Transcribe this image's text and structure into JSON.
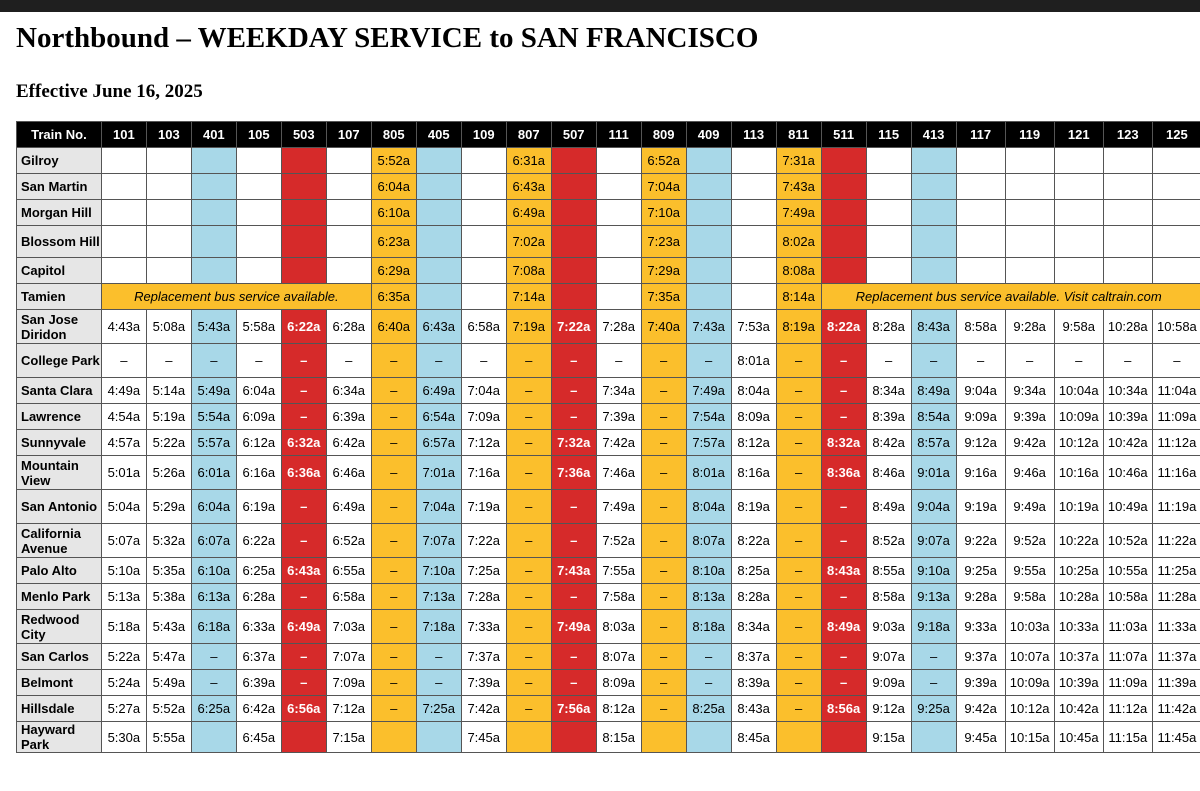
{
  "page": {
    "title": "Northbound – WEEKDAY SERVICE to SAN FRANCISCO",
    "effective": "Effective June 16, 2025"
  },
  "table": {
    "header_label": "Train No.",
    "trains": [
      "101",
      "103",
      "401",
      "105",
      "503",
      "107",
      "805",
      "405",
      "109",
      "807",
      "507",
      "111",
      "809",
      "409",
      "113",
      "811",
      "511",
      "115",
      "413",
      "117",
      "119",
      "121",
      "123",
      "125"
    ],
    "train_types": [
      "local",
      "local",
      "limited",
      "local",
      "bullet",
      "local",
      "express",
      "limited",
      "local",
      "express",
      "bullet",
      "local",
      "express",
      "limited",
      "local",
      "express",
      "bullet",
      "local",
      "limited",
      "local",
      "local",
      "local",
      "local",
      "local"
    ],
    "type_colors": {
      "local": "#ffffff",
      "limited": "#a8d8e8",
      "express": "#fbbf2c",
      "bullet": "#d62a2a"
    },
    "notices": {
      "tamien_left": "Replacement bus service available.",
      "tamien_right": "Replacement bus service available. Visit caltrain.com"
    },
    "stations": [
      {
        "name": "Gilroy",
        "times": [
          "",
          "",
          "",
          "",
          "",
          "",
          "5:52a",
          "",
          "",
          "6:31a",
          "",
          "",
          "6:52a",
          "",
          "",
          "7:31a",
          "",
          "",
          "",
          "",
          "",
          "",
          "",
          ""
        ]
      },
      {
        "name": "San Martin",
        "times": [
          "",
          "",
          "",
          "",
          "",
          "",
          "6:04a",
          "",
          "",
          "6:43a",
          "",
          "",
          "7:04a",
          "",
          "",
          "7:43a",
          "",
          "",
          "",
          "",
          "",
          "",
          "",
          ""
        ]
      },
      {
        "name": "Morgan Hill",
        "times": [
          "",
          "",
          "",
          "",
          "",
          "",
          "6:10a",
          "",
          "",
          "6:49a",
          "",
          "",
          "7:10a",
          "",
          "",
          "7:49a",
          "",
          "",
          "",
          "",
          "",
          "",
          "",
          ""
        ]
      },
      {
        "name": "Blossom Hill",
        "times": [
          "",
          "",
          "",
          "",
          "",
          "",
          "6:23a",
          "",
          "",
          "7:02a",
          "",
          "",
          "7:23a",
          "",
          "",
          "8:02a",
          "",
          "",
          "",
          "",
          "",
          "",
          "",
          ""
        ]
      },
      {
        "name": "Capitol",
        "times": [
          "",
          "",
          "",
          "",
          "",
          "",
          "6:29a",
          "",
          "",
          "7:08a",
          "",
          "",
          "7:29a",
          "",
          "",
          "8:08a",
          "",
          "",
          "",
          "",
          "",
          "",
          "",
          ""
        ]
      },
      {
        "name": "Tamien",
        "times": [
          "",
          "",
          "",
          "",
          "",
          "",
          "6:35a",
          "",
          "",
          "7:14a",
          "",
          "",
          "7:35a",
          "",
          "",
          "8:14a",
          "",
          "",
          "",
          "",
          "",
          "",
          "",
          ""
        ]
      },
      {
        "name": "San Jose Diridon",
        "times": [
          "4:43a",
          "5:08a",
          "5:43a",
          "5:58a",
          "6:22a",
          "6:28a",
          "6:40a",
          "6:43a",
          "6:58a",
          "7:19a",
          "7:22a",
          "7:28a",
          "7:40a",
          "7:43a",
          "7:53a",
          "8:19a",
          "8:22a",
          "8:28a",
          "8:43a",
          "8:58a",
          "9:28a",
          "9:58a",
          "10:28a",
          "10:58a"
        ]
      },
      {
        "name": "College Park",
        "times": [
          "–",
          "–",
          "–",
          "–",
          "–",
          "–",
          "–",
          "–",
          "–",
          "–",
          "–",
          "–",
          "–",
          "–",
          "8:01a",
          "–",
          "–",
          "–",
          "–",
          "–",
          "–",
          "–",
          "–",
          "–"
        ]
      },
      {
        "name": "Santa Clara",
        "times": [
          "4:49a",
          "5:14a",
          "5:49a",
          "6:04a",
          "–",
          "6:34a",
          "–",
          "6:49a",
          "7:04a",
          "–",
          "–",
          "7:34a",
          "–",
          "7:49a",
          "8:04a",
          "–",
          "–",
          "8:34a",
          "8:49a",
          "9:04a",
          "9:34a",
          "10:04a",
          "10:34a",
          "11:04a"
        ]
      },
      {
        "name": "Lawrence",
        "times": [
          "4:54a",
          "5:19a",
          "5:54a",
          "6:09a",
          "–",
          "6:39a",
          "–",
          "6:54a",
          "7:09a",
          "–",
          "–",
          "7:39a",
          "–",
          "7:54a",
          "8:09a",
          "–",
          "–",
          "8:39a",
          "8:54a",
          "9:09a",
          "9:39a",
          "10:09a",
          "10:39a",
          "11:09a"
        ]
      },
      {
        "name": "Sunnyvale",
        "times": [
          "4:57a",
          "5:22a",
          "5:57a",
          "6:12a",
          "6:32a",
          "6:42a",
          "–",
          "6:57a",
          "7:12a",
          "–",
          "7:32a",
          "7:42a",
          "–",
          "7:57a",
          "8:12a",
          "–",
          "8:32a",
          "8:42a",
          "8:57a",
          "9:12a",
          "9:42a",
          "10:12a",
          "10:42a",
          "11:12a"
        ]
      },
      {
        "name": "Mountain View",
        "times": [
          "5:01a",
          "5:26a",
          "6:01a",
          "6:16a",
          "6:36a",
          "6:46a",
          "–",
          "7:01a",
          "7:16a",
          "–",
          "7:36a",
          "7:46a",
          "–",
          "8:01a",
          "8:16a",
          "–",
          "8:36a",
          "8:46a",
          "9:01a",
          "9:16a",
          "9:46a",
          "10:16a",
          "10:46a",
          "11:16a"
        ]
      },
      {
        "name": "San Antonio",
        "times": [
          "5:04a",
          "5:29a",
          "6:04a",
          "6:19a",
          "–",
          "6:49a",
          "–",
          "7:04a",
          "7:19a",
          "–",
          "–",
          "7:49a",
          "–",
          "8:04a",
          "8:19a",
          "–",
          "–",
          "8:49a",
          "9:04a",
          "9:19a",
          "9:49a",
          "10:19a",
          "10:49a",
          "11:19a"
        ]
      },
      {
        "name": "California Avenue",
        "times": [
          "5:07a",
          "5:32a",
          "6:07a",
          "6:22a",
          "–",
          "6:52a",
          "–",
          "7:07a",
          "7:22a",
          "–",
          "–",
          "7:52a",
          "–",
          "8:07a",
          "8:22a",
          "–",
          "–",
          "8:52a",
          "9:07a",
          "9:22a",
          "9:52a",
          "10:22a",
          "10:52a",
          "11:22a"
        ]
      },
      {
        "name": "Palo Alto",
        "times": [
          "5:10a",
          "5:35a",
          "6:10a",
          "6:25a",
          "6:43a",
          "6:55a",
          "–",
          "7:10a",
          "7:25a",
          "–",
          "7:43a",
          "7:55a",
          "–",
          "8:10a",
          "8:25a",
          "–",
          "8:43a",
          "8:55a",
          "9:10a",
          "9:25a",
          "9:55a",
          "10:25a",
          "10:55a",
          "11:25a"
        ]
      },
      {
        "name": "Menlo Park",
        "times": [
          "5:13a",
          "5:38a",
          "6:13a",
          "6:28a",
          "–",
          "6:58a",
          "–",
          "7:13a",
          "7:28a",
          "–",
          "–",
          "7:58a",
          "–",
          "8:13a",
          "8:28a",
          "–",
          "–",
          "8:58a",
          "9:13a",
          "9:28a",
          "9:58a",
          "10:28a",
          "10:58a",
          "11:28a"
        ]
      },
      {
        "name": "Redwood City",
        "times": [
          "5:18a",
          "5:43a",
          "6:18a",
          "6:33a",
          "6:49a",
          "7:03a",
          "–",
          "7:18a",
          "7:33a",
          "–",
          "7:49a",
          "8:03a",
          "–",
          "8:18a",
          "8:34a",
          "–",
          "8:49a",
          "9:03a",
          "9:18a",
          "9:33a",
          "10:03a",
          "10:33a",
          "11:03a",
          "11:33a"
        ]
      },
      {
        "name": "San Carlos",
        "times": [
          "5:22a",
          "5:47a",
          "–",
          "6:37a",
          "–",
          "7:07a",
          "–",
          "–",
          "7:37a",
          "–",
          "–",
          "8:07a",
          "–",
          "–",
          "8:37a",
          "–",
          "–",
          "9:07a",
          "–",
          "9:37a",
          "10:07a",
          "10:37a",
          "11:07a",
          "11:37a"
        ]
      },
      {
        "name": "Belmont",
        "times": [
          "5:24a",
          "5:49a",
          "–",
          "6:39a",
          "–",
          "7:09a",
          "–",
          "–",
          "7:39a",
          "–",
          "–",
          "8:09a",
          "–",
          "–",
          "8:39a",
          "–",
          "–",
          "9:09a",
          "–",
          "9:39a",
          "10:09a",
          "10:39a",
          "11:09a",
          "11:39a"
        ]
      },
      {
        "name": "Hillsdale",
        "times": [
          "5:27a",
          "5:52a",
          "6:25a",
          "6:42a",
          "6:56a",
          "7:12a",
          "–",
          "7:25a",
          "7:42a",
          "–",
          "7:56a",
          "8:12a",
          "–",
          "8:25a",
          "8:43a",
          "–",
          "8:56a",
          "9:12a",
          "9:25a",
          "9:42a",
          "10:12a",
          "10:42a",
          "11:12a",
          "11:42a"
        ]
      },
      {
        "name": "Hayward Park",
        "times": [
          "5:30a",
          "5:55a",
          "",
          "6:45a",
          "",
          "7:15a",
          "",
          "",
          "7:45a",
          "",
          "",
          "8:15a",
          "",
          "",
          "8:45a",
          "",
          "",
          "9:15a",
          "",
          "9:45a",
          "10:15a",
          "10:45a",
          "11:15a",
          "11:45a"
        ]
      }
    ]
  }
}
